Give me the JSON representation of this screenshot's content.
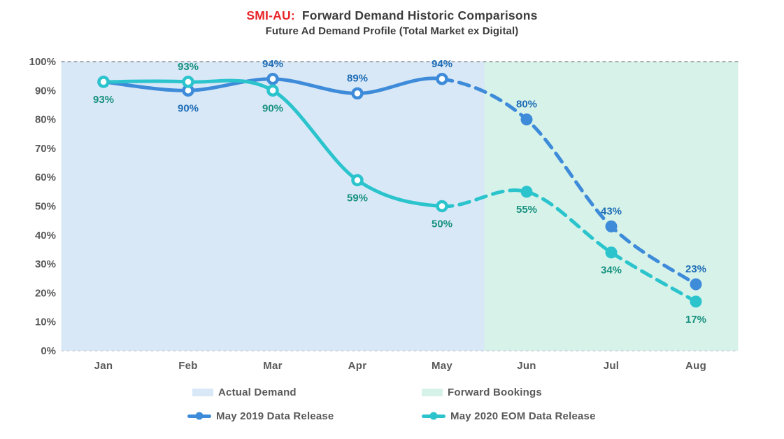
{
  "chart_data": {
    "type": "line",
    "title_prefix": "SMI-AU:",
    "title_rest": "Forward Demand Historic Comparisons",
    "subtitle": "Future Ad Demand Profile (Total Market ex Digital)",
    "title_prefix_color": "#e82428",
    "categories": [
      "Jan",
      "Feb",
      "Mar",
      "Apr",
      "May",
      "Jun",
      "Jul",
      "Aug"
    ],
    "y_ticks": [
      "0%",
      "10%",
      "20%",
      "30%",
      "40%",
      "50%",
      "60%",
      "70%",
      "80%",
      "90%",
      "100%"
    ],
    "ylim": [
      0,
      100
    ],
    "grid": "top-and-bottom-dashed-only",
    "legend_position": "bottom",
    "solid_until_index": 4,
    "regions": [
      {
        "label": "Actual Demand",
        "color": "#d9e8f7",
        "from_index": -0.5,
        "to_index": 4.5
      },
      {
        "label": "Forward Bookings",
        "color": "#d7f2e9",
        "from_index": 4.5,
        "to_index": 7.5
      }
    ],
    "series": [
      {
        "name": "May 2019 Data Release",
        "color": "#3d8bd9",
        "label_color": "#1e6db6",
        "values": [
          93,
          90,
          94,
          89,
          94,
          80,
          43,
          23
        ],
        "labels": [
          "",
          "90%",
          "94%",
          "89%",
          "94%",
          "80%",
          "43%",
          "23%"
        ],
        "label_positions": [
          "",
          "below",
          "above",
          "above",
          "above",
          "above",
          "above",
          "above"
        ]
      },
      {
        "name": "May 2020 EOM Data Release",
        "color": "#2bc4cd",
        "label_color": "#17917f",
        "values": [
          93,
          93,
          90,
          59,
          50,
          55,
          34,
          17
        ],
        "labels": [
          "93%",
          "93%",
          "90%",
          "59%",
          "50%",
          "55%",
          "34%",
          "17%"
        ],
        "label_positions": [
          "below",
          "above",
          "below",
          "below",
          "below",
          "below",
          "below",
          "below"
        ]
      }
    ]
  }
}
